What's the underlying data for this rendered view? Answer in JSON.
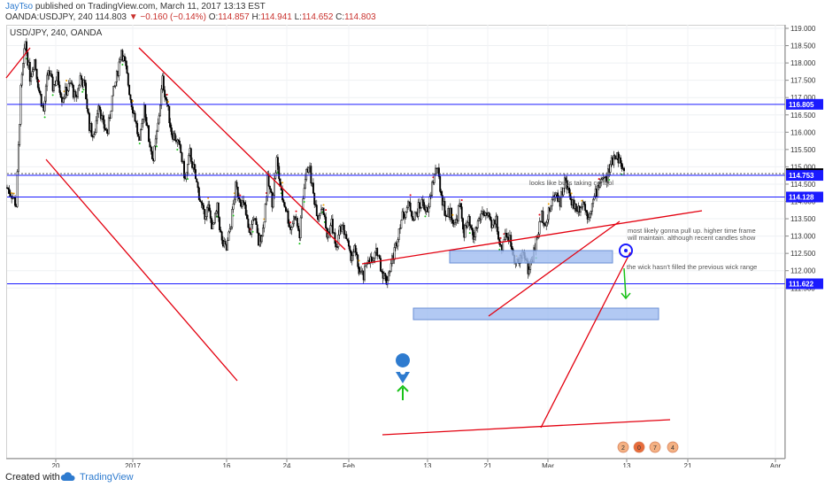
{
  "header": {
    "author": "JayTso",
    "published_text": " published on TradingView.com, March 11, 2017 13:13 EST",
    "ticker": "OANDA:USDJPY, 240",
    "last": "114.803",
    "change": "−0.160 (−0.14%)",
    "o_label": "O:",
    "o_val": "114.857",
    "h_label": "H:",
    "h_val": "114.941",
    "l_label": "L:",
    "l_val": "114.652",
    "c_label": "C:",
    "c_val": "114.803"
  },
  "chart_title": "USD/JPY, 240, OANDA",
  "price_axis": {
    "ticks": [
      "119.000",
      "118.500",
      "118.000",
      "117.500",
      "117.000",
      "116.500",
      "116.000",
      "115.500",
      "115.000",
      "114.500",
      "114.000",
      "113.500",
      "113.000",
      "112.500",
      "112.000",
      "111.500"
    ],
    "labels": [
      {
        "text": "116.805",
        "price": 116.805,
        "color": "#1a1aff"
      },
      {
        "text": "114.803",
        "price": 114.803,
        "color": "#000000"
      },
      {
        "text": "114.753",
        "price": 114.753,
        "color": "#1a1aff"
      },
      {
        "text": "114.128",
        "price": 114.128,
        "color": "#1a1aff"
      },
      {
        "text": "111.622",
        "price": 111.622,
        "color": "#1a1aff"
      }
    ]
  },
  "time_axis": {
    "ticks": [
      "20",
      "2017",
      "16",
      "24",
      "Feb",
      "13",
      "21",
      "Mar",
      "13",
      "21",
      "Apr"
    ]
  },
  "annotations": {
    "bulls": "looks like bulls taking control",
    "pullup_1": "most likely gonna pull up. higher time frame",
    "pullup_2": "will maintain. although recent candles show",
    "wick": "the wick hasn't filled the previous wick range"
  },
  "event_icons": [
    "2",
    "0",
    "7",
    "4"
  ],
  "footer": {
    "created": "Created with",
    "brand": "TradingView"
  },
  "colors": {
    "trendline": "#e3000f",
    "hline": "#1a1aff",
    "zone_fill": "#9fbcf0",
    "up_arrow": "#19c219",
    "marker": "#2e7bcf"
  },
  "chart_data": {
    "type": "candlestick",
    "symbol": "USD/JPY",
    "interval": "240",
    "ylim": [
      111.4,
      119.1
    ],
    "horizontal_levels": [
      116.805,
      114.753,
      114.128,
      111.622
    ],
    "series_path": [
      [
        0,
        114.4
      ],
      [
        4,
        114.2
      ],
      [
        8,
        113.9
      ],
      [
        12,
        117.2
      ],
      [
        16,
        118.6
      ],
      [
        20,
        117.6
      ],
      [
        24,
        118.1
      ],
      [
        28,
        117.2
      ],
      [
        32,
        116.6
      ],
      [
        36,
        117.8
      ],
      [
        40,
        117.3
      ],
      [
        44,
        117.6
      ],
      [
        48,
        117.0
      ],
      [
        52,
        117.2
      ],
      [
        56,
        117.4
      ],
      [
        60,
        116.9
      ],
      [
        64,
        117.6
      ],
      [
        68,
        117.3
      ],
      [
        72,
        116.2
      ],
      [
        76,
        115.8
      ],
      [
        80,
        116.9
      ],
      [
        84,
        116.2
      ],
      [
        88,
        116.0
      ],
      [
        92,
        117.0
      ],
      [
        96,
        117.6
      ],
      [
        100,
        118.4
      ],
      [
        104,
        117.8
      ],
      [
        108,
        117.0
      ],
      [
        112,
        116.4
      ],
      [
        116,
        115.6
      ],
      [
        120,
        116.8
      ],
      [
        124,
        115.8
      ],
      [
        128,
        115.2
      ],
      [
        132,
        116.2
      ],
      [
        136,
        117.5
      ],
      [
        140,
        116.8
      ],
      [
        144,
        116.0
      ],
      [
        148,
        115.8
      ],
      [
        152,
        115.4
      ],
      [
        156,
        114.6
      ],
      [
        160,
        115.4
      ],
      [
        164,
        114.8
      ],
      [
        168,
        114.2
      ],
      [
        172,
        113.6
      ],
      [
        176,
        113.8
      ],
      [
        180,
        113.2
      ],
      [
        184,
        113.8
      ],
      [
        188,
        112.8
      ],
      [
        192,
        112.6
      ],
      [
        196,
        113.4
      ],
      [
        200,
        114.4
      ],
      [
        204,
        114.1
      ],
      [
        208,
        113.8
      ],
      [
        212,
        113.0
      ],
      [
        216,
        113.6
      ],
      [
        220,
        112.8
      ],
      [
        224,
        113.2
      ],
      [
        228,
        114.6
      ],
      [
        232,
        114.0
      ],
      [
        236,
        115.2
      ],
      [
        240,
        114.2
      ],
      [
        244,
        113.8
      ],
      [
        248,
        113.2
      ],
      [
        252,
        113.6
      ],
      [
        256,
        113.0
      ],
      [
        260,
        114.5
      ],
      [
        264,
        115.1
      ],
      [
        268,
        114.2
      ],
      [
        272,
        113.6
      ],
      [
        276,
        113.9
      ],
      [
        280,
        113.0
      ],
      [
        284,
        113.4
      ],
      [
        288,
        112.6
      ],
      [
        292,
        113.3
      ],
      [
        296,
        113.1
      ],
      [
        300,
        112.4
      ],
      [
        304,
        112.6
      ],
      [
        308,
        112.0
      ],
      [
        312,
        111.8
      ],
      [
        316,
        112.4
      ],
      [
        320,
        112.2
      ],
      [
        324,
        112.6
      ],
      [
        328,
        112.0
      ],
      [
        332,
        111.7
      ],
      [
        336,
        112.2
      ],
      [
        340,
        112.7
      ],
      [
        344,
        113.4
      ],
      [
        348,
        113.7
      ],
      [
        352,
        113.9
      ],
      [
        356,
        113.5
      ],
      [
        360,
        113.8
      ],
      [
        364,
        114.0
      ],
      [
        368,
        113.6
      ],
      [
        372,
        114.5
      ],
      [
        376,
        115.0
      ],
      [
        380,
        114.2
      ],
      [
        384,
        113.6
      ],
      [
        388,
        113.7
      ],
      [
        392,
        113.3
      ],
      [
        396,
        113.9
      ],
      [
        400,
        113.1
      ],
      [
        404,
        113.4
      ],
      [
        408,
        112.9
      ],
      [
        412,
        113.4
      ],
      [
        416,
        113.7
      ],
      [
        420,
        113.6
      ],
      [
        424,
        113.2
      ],
      [
        428,
        113.5
      ],
      [
        432,
        112.6
      ],
      [
        436,
        113.1
      ],
      [
        440,
        112.9
      ],
      [
        444,
        112.4
      ],
      [
        448,
        112.2
      ],
      [
        452,
        112.6
      ],
      [
        456,
        112.0
      ],
      [
        460,
        112.4
      ],
      [
        464,
        113.0
      ],
      [
        468,
        113.6
      ],
      [
        472,
        113.4
      ],
      [
        476,
        113.9
      ],
      [
        480,
        114.3
      ],
      [
        484,
        114.0
      ],
      [
        488,
        114.6
      ],
      [
        492,
        114.2
      ],
      [
        496,
        113.9
      ],
      [
        500,
        113.8
      ],
      [
        504,
        114.0
      ],
      [
        508,
        113.6
      ],
      [
        512,
        113.9
      ],
      [
        516,
        114.3
      ],
      [
        520,
        114.7
      ],
      [
        524,
        114.6
      ],
      [
        528,
        115.0
      ],
      [
        532,
        115.4
      ],
      [
        536,
        115.2
      ],
      [
        540,
        114.8
      ]
    ]
  }
}
